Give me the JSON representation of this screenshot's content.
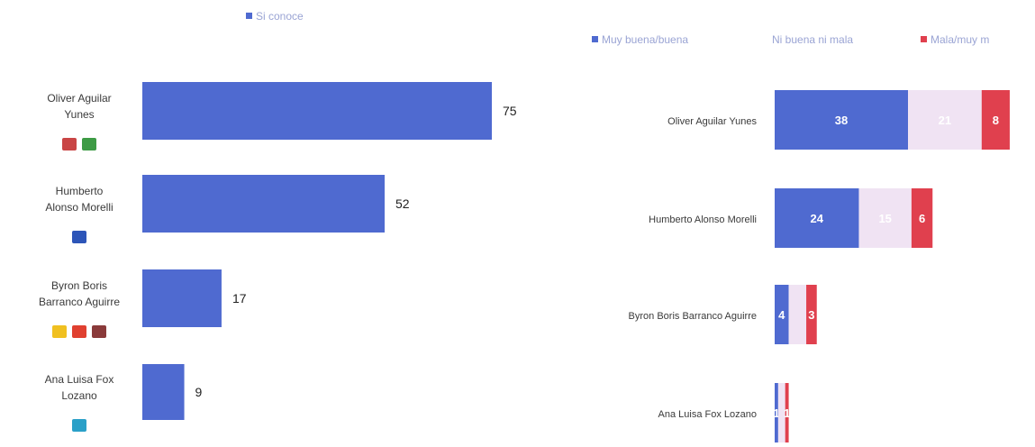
{
  "colors": {
    "blue": "#4f6ad0",
    "light": "#f0e3f3",
    "red": "#e0404e",
    "label": "#3a3a3a",
    "legend": "#9aa4d4"
  },
  "chart_data": [
    {
      "type": "bar",
      "orientation": "horizontal",
      "legend": [
        "Si conoce"
      ],
      "categories": [
        [
          "Oliver Aguilar",
          "Yunes"
        ],
        [
          "Humberto",
          "Alonso Morelli"
        ],
        [
          "Byron Boris",
          "Barranco Aguirre"
        ],
        [
          "Ana Luisa Fox",
          "Lozano"
        ]
      ],
      "series": [
        {
          "name": "Si conoce",
          "values": [
            75,
            52,
            17,
            9
          ]
        }
      ],
      "xlim": [
        0,
        100
      ],
      "party_icons": [
        [
          "pri-verde-icon",
          "verde-icon"
        ],
        [
          "pan-icon"
        ],
        [
          "prd-icon",
          "pt-icon",
          "morena-icon"
        ],
        [
          "nueva-alianza-icon"
        ]
      ]
    },
    {
      "type": "bar",
      "orientation": "horizontal",
      "stacked": true,
      "legend": [
        "Muy buena/buena",
        "Ni buena ni mala",
        "Mala/muy m"
      ],
      "categories": [
        "Oliver Aguilar Yunes",
        "Humberto Alonso Morelli",
        "Byron Boris Barranco Aguirre",
        "Ana Luisa Fox Lozano"
      ],
      "series": [
        {
          "name": "Muy buena/buena",
          "values": [
            38,
            24,
            4,
            1
          ],
          "labels": [
            "38",
            "24",
            "4",
            "1"
          ]
        },
        {
          "name": "Ni buena ni mala",
          "values": [
            21,
            15,
            5,
            2
          ],
          "labels": [
            "21",
            "15",
            "",
            ""
          ]
        },
        {
          "name": "Mala/muy m",
          "values": [
            8,
            6,
            3,
            1
          ],
          "labels": [
            "8",
            "6",
            "3",
            "1"
          ]
        }
      ],
      "xlim": [
        0,
        100
      ]
    }
  ]
}
